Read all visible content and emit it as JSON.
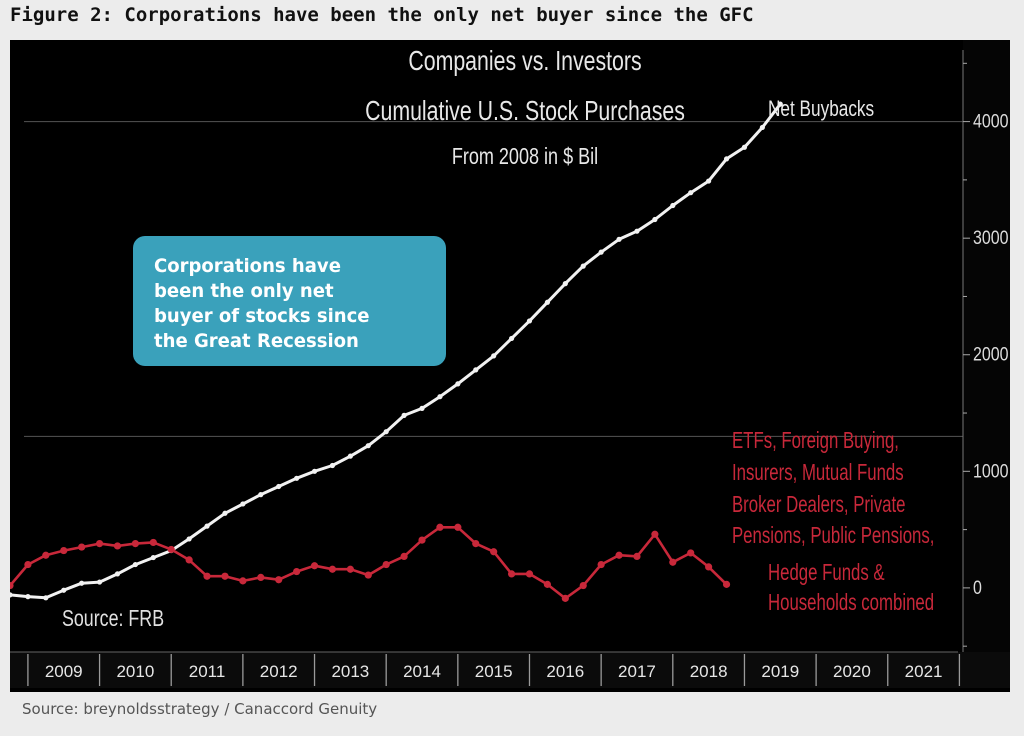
{
  "figure_title": "Figure 2: Corporations have been the only net buyer since the GFC",
  "source_note": "Source: breynoldsstrategy / Canaccord Genuity",
  "colors": {
    "background": "#000000",
    "net_buybacks": "#f2f2f2",
    "others": "#c8283a",
    "callout": "#3aa1bb",
    "frame": "#1a1a1a"
  },
  "chart_data": {
    "type": "line",
    "title": [
      "Companies vs. Investors",
      "Cumulative U.S. Stock Purchases",
      "From 2008 in $ Bil"
    ],
    "source_label": "Source: FRB",
    "callout_text": [
      "Corporations have",
      "been the only net",
      "buyer of stocks since",
      "the Great Recession"
    ],
    "x_tick_labels": [
      "2009",
      "2010",
      "2011",
      "2012",
      "2013",
      "2014",
      "2015",
      "2016",
      "2017",
      "2018",
      "2019",
      "2020",
      "2021"
    ],
    "xlim": [
      2008.5,
      2021.8
    ],
    "ylim": [
      -550,
      4700
    ],
    "y_ticks": [
      0,
      1000,
      2000,
      3000,
      4000
    ],
    "y_tick_labels": [
      "0",
      "1000",
      "2000",
      "3000",
      "4000"
    ],
    "series": [
      {
        "name": "Net Buybacks",
        "label_lines": [
          "Net Buybacks"
        ],
        "points": [
          [
            2008.5,
            -60
          ],
          [
            2008.75,
            -75
          ],
          [
            2009.0,
            -85
          ],
          [
            2009.25,
            -20
          ],
          [
            2009.5,
            40
          ],
          [
            2009.75,
            50
          ],
          [
            2010.0,
            120
          ],
          [
            2010.25,
            200
          ],
          [
            2010.5,
            260
          ],
          [
            2010.75,
            320
          ],
          [
            2011.0,
            420
          ],
          [
            2011.25,
            530
          ],
          [
            2011.5,
            640
          ],
          [
            2011.75,
            720
          ],
          [
            2012.0,
            800
          ],
          [
            2012.25,
            870
          ],
          [
            2012.5,
            940
          ],
          [
            2012.75,
            1000
          ],
          [
            2013.0,
            1050
          ],
          [
            2013.25,
            1130
          ],
          [
            2013.5,
            1220
          ],
          [
            2013.75,
            1340
          ],
          [
            2014.0,
            1480
          ],
          [
            2014.25,
            1540
          ],
          [
            2014.5,
            1640
          ],
          [
            2014.75,
            1750
          ],
          [
            2015.0,
            1870
          ],
          [
            2015.25,
            1990
          ],
          [
            2015.5,
            2140
          ],
          [
            2015.75,
            2290
          ],
          [
            2016.0,
            2450
          ],
          [
            2016.25,
            2610
          ],
          [
            2016.5,
            2760
          ],
          [
            2016.75,
            2880
          ],
          [
            2017.0,
            2990
          ],
          [
            2017.25,
            3060
          ],
          [
            2017.5,
            3160
          ],
          [
            2017.75,
            3280
          ],
          [
            2018.0,
            3390
          ],
          [
            2018.25,
            3490
          ],
          [
            2018.5,
            3680
          ],
          [
            2018.75,
            3780
          ],
          [
            2019.0,
            3950
          ],
          [
            2019.25,
            4150
          ]
        ]
      },
      {
        "name": "ETFs, Foreign Buying, Insurers, Mutual Funds Broker Dealers, Private Pensions, Public Pensions, Hedge Funds & Households combined",
        "label_lines": [
          "ETFs, Foreign Buying,",
          "Insurers, Mutual Funds",
          "Broker Dealers, Private",
          "Pensions, Public Pensions,",
          "Hedge Funds &",
          "Households combined"
        ],
        "points": [
          [
            2008.5,
            20
          ],
          [
            2008.75,
            200
          ],
          [
            2009.0,
            280
          ],
          [
            2009.25,
            320
          ],
          [
            2009.5,
            350
          ],
          [
            2009.75,
            380
          ],
          [
            2010.0,
            360
          ],
          [
            2010.25,
            380
          ],
          [
            2010.5,
            390
          ],
          [
            2010.75,
            330
          ],
          [
            2011.0,
            240
          ],
          [
            2011.25,
            100
          ],
          [
            2011.5,
            100
          ],
          [
            2011.75,
            60
          ],
          [
            2012.0,
            90
          ],
          [
            2012.25,
            70
          ],
          [
            2012.5,
            140
          ],
          [
            2012.75,
            190
          ],
          [
            2013.0,
            160
          ],
          [
            2013.25,
            160
          ],
          [
            2013.5,
            110
          ],
          [
            2013.75,
            200
          ],
          [
            2014.0,
            270
          ],
          [
            2014.25,
            410
          ],
          [
            2014.5,
            520
          ],
          [
            2014.75,
            520
          ],
          [
            2015.0,
            380
          ],
          [
            2015.25,
            310
          ],
          [
            2015.5,
            120
          ],
          [
            2015.75,
            120
          ],
          [
            2016.0,
            30
          ],
          [
            2016.25,
            -90
          ],
          [
            2016.5,
            20
          ],
          [
            2016.75,
            200
          ],
          [
            2017.0,
            280
          ],
          [
            2017.25,
            270
          ],
          [
            2017.5,
            460
          ],
          [
            2017.75,
            220
          ],
          [
            2018.0,
            300
          ],
          [
            2018.25,
            180
          ],
          [
            2018.5,
            30
          ]
        ]
      }
    ],
    "legend": "inline"
  }
}
